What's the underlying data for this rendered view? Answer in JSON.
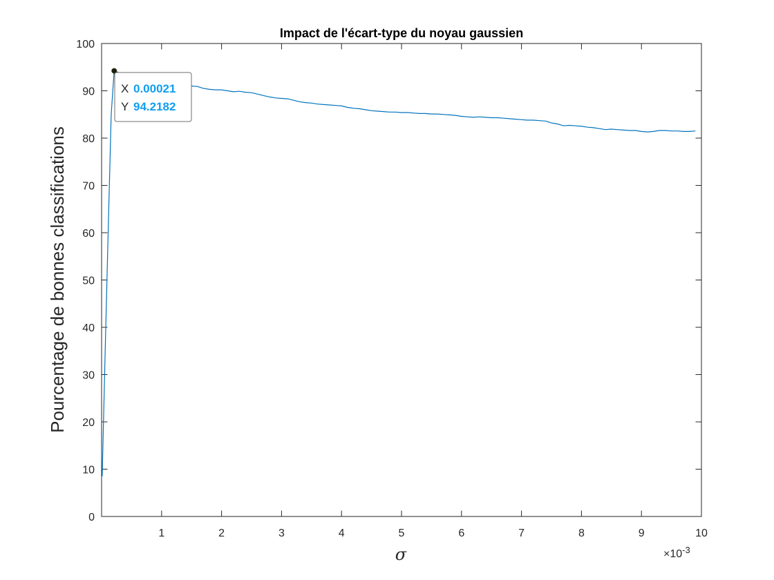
{
  "chart_data": {
    "type": "line",
    "title": "Impact de l'écart-type du noyau gaussien",
    "xlabel": "σ",
    "ylabel": "Pourcentage de bonnes classifications",
    "x_exponent_label": "×10",
    "x_exponent_power": "-3",
    "xlim": [
      0,
      0.01
    ],
    "ylim": [
      0,
      100
    ],
    "x_ticks": [
      0.001,
      0.002,
      0.003,
      0.004,
      0.005,
      0.006,
      0.007,
      0.008,
      0.009,
      0.01
    ],
    "x_tick_labels": [
      "1",
      "2",
      "3",
      "4",
      "5",
      "6",
      "7",
      "8",
      "9",
      "10"
    ],
    "y_ticks": [
      0,
      10,
      20,
      30,
      40,
      50,
      60,
      70,
      80,
      90,
      100
    ],
    "y_tick_labels": [
      "0",
      "10",
      "20",
      "30",
      "40",
      "50",
      "60",
      "70",
      "80",
      "90",
      "100"
    ],
    "grid": false,
    "line_color": "#0072bd",
    "series": [
      {
        "x": [
          1e-05,
          6e-05,
          0.00011,
          0.00016,
          0.00021,
          0.00026,
          0.00031,
          0.0004,
          0.0005,
          0.0006,
          0.0007,
          0.0008,
          0.0009,
          0.001,
          0.0011,
          0.0012,
          0.0013,
          0.0014,
          0.0015,
          0.0016,
          0.0017,
          0.0018,
          0.0019,
          0.002,
          0.0021,
          0.0022,
          0.0023,
          0.0024,
          0.0025,
          0.0026,
          0.0027,
          0.0028,
          0.0029,
          0.003,
          0.0031,
          0.0032,
          0.0033,
          0.0034,
          0.0035,
          0.0036,
          0.0037,
          0.0038,
          0.0039,
          0.004,
          0.0041,
          0.0042,
          0.0043,
          0.0044,
          0.0045,
          0.0046,
          0.0047,
          0.0048,
          0.0049,
          0.005,
          0.0051,
          0.0052,
          0.0053,
          0.0054,
          0.0055,
          0.0056,
          0.0057,
          0.0058,
          0.0059,
          0.006,
          0.0061,
          0.0062,
          0.0063,
          0.0064,
          0.0065,
          0.0066,
          0.0067,
          0.0068,
          0.0069,
          0.007,
          0.0071,
          0.0072,
          0.0073,
          0.0074,
          0.0075,
          0.0076,
          0.0077,
          0.0078,
          0.0079,
          0.008,
          0.0081,
          0.0082,
          0.0083,
          0.0084,
          0.0085,
          0.0086,
          0.0087,
          0.0088,
          0.0089,
          0.009,
          0.0091,
          0.0092,
          0.0093,
          0.0094,
          0.0095,
          0.0096,
          0.0097,
          0.0098,
          0.0099
        ],
        "y": [
          8.5,
          35.0,
          60.0,
          85.0,
          94.2182,
          94.0,
          93.6,
          93.0,
          92.5,
          92.1,
          91.8,
          91.5,
          91.3,
          91.1,
          91.0,
          90.9,
          90.8,
          90.9,
          91.0,
          90.9,
          90.5,
          90.3,
          90.2,
          90.2,
          90.0,
          89.8,
          89.9,
          89.7,
          89.6,
          89.3,
          89.0,
          88.7,
          88.5,
          88.4,
          88.3,
          88.0,
          87.7,
          87.5,
          87.4,
          87.2,
          87.1,
          87.0,
          86.9,
          86.8,
          86.5,
          86.3,
          86.2,
          86.0,
          85.8,
          85.7,
          85.6,
          85.5,
          85.5,
          85.4,
          85.4,
          85.3,
          85.2,
          85.2,
          85.1,
          85.1,
          85.0,
          84.9,
          84.8,
          84.6,
          84.5,
          84.4,
          84.5,
          84.4,
          84.3,
          84.3,
          84.2,
          84.1,
          84.0,
          83.9,
          83.8,
          83.8,
          83.7,
          83.6,
          83.2,
          83.0,
          82.6,
          82.7,
          82.6,
          82.5,
          82.3,
          82.2,
          82.0,
          81.8,
          81.9,
          81.8,
          81.7,
          81.6,
          81.6,
          81.4,
          81.3,
          81.4,
          81.6,
          81.6,
          81.5,
          81.5,
          81.4,
          81.4,
          81.5
        ]
      }
    ],
    "datatip": {
      "x_key": "X",
      "x_value": "0.00021",
      "y_key": "Y",
      "y_value": "94.2182",
      "point_x": 0.00021,
      "point_y": 94.2182
    }
  }
}
